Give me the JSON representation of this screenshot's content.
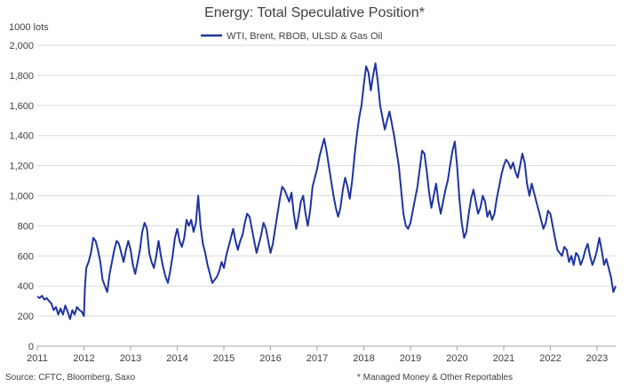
{
  "chart_data": {
    "type": "line",
    "title": "Energy: Total Speculative Position*",
    "ylabel": "1000 lots",
    "ylim": [
      0,
      2000
    ],
    "yticks": [
      0,
      200,
      400,
      600,
      800,
      1000,
      1200,
      1400,
      1600,
      1800,
      2000
    ],
    "ytick_labels": [
      "0",
      "200",
      "400",
      "600",
      "800",
      "1,000",
      "1,200",
      "1,400",
      "1,600",
      "1,800",
      "2,000"
    ],
    "xlim": [
      2011.0,
      2023.4
    ],
    "xticks": [
      "2011",
      "2012",
      "2013",
      "2014",
      "2015",
      "2016",
      "2017",
      "2018",
      "2019",
      "2020",
      "2021",
      "2022",
      "2023"
    ],
    "grid": "horizontal",
    "legend_position": "top-center",
    "source": "Source: CFTC, Bloomberg, Saxo",
    "footnote": "* Managed Money & Other Reportables",
    "series": [
      {
        "name": "WTI, Brent, RBOB, ULSD & Gas Oil",
        "color": "#1f34a0",
        "points": [
          [
            2011.0,
            330
          ],
          [
            2011.05,
            320
          ],
          [
            2011.1,
            335
          ],
          [
            2011.15,
            310
          ],
          [
            2011.2,
            320
          ],
          [
            2011.25,
            300
          ],
          [
            2011.3,
            285
          ],
          [
            2011.35,
            240
          ],
          [
            2011.4,
            260
          ],
          [
            2011.45,
            210
          ],
          [
            2011.5,
            250
          ],
          [
            2011.55,
            210
          ],
          [
            2011.6,
            270
          ],
          [
            2011.65,
            230
          ],
          [
            2011.7,
            180
          ],
          [
            2011.75,
            240
          ],
          [
            2011.8,
            210
          ],
          [
            2011.85,
            260
          ],
          [
            2011.9,
            240
          ],
          [
            2011.95,
            230
          ],
          [
            2012.0,
            200
          ],
          [
            2012.02,
            380
          ],
          [
            2012.05,
            520
          ],
          [
            2012.1,
            560
          ],
          [
            2012.15,
            620
          ],
          [
            2012.2,
            720
          ],
          [
            2012.25,
            700
          ],
          [
            2012.3,
            640
          ],
          [
            2012.35,
            560
          ],
          [
            2012.4,
            440
          ],
          [
            2012.45,
            400
          ],
          [
            2012.5,
            360
          ],
          [
            2012.55,
            480
          ],
          [
            2012.6,
            560
          ],
          [
            2012.65,
            640
          ],
          [
            2012.7,
            700
          ],
          [
            2012.75,
            680
          ],
          [
            2012.8,
            620
          ],
          [
            2012.85,
            560
          ],
          [
            2012.9,
            640
          ],
          [
            2012.95,
            700
          ],
          [
            2013.0,
            640
          ],
          [
            2013.05,
            540
          ],
          [
            2013.1,
            480
          ],
          [
            2013.15,
            560
          ],
          [
            2013.2,
            640
          ],
          [
            2013.25,
            760
          ],
          [
            2013.3,
            820
          ],
          [
            2013.35,
            780
          ],
          [
            2013.4,
            620
          ],
          [
            2013.45,
            560
          ],
          [
            2013.5,
            520
          ],
          [
            2013.55,
            600
          ],
          [
            2013.6,
            700
          ],
          [
            2013.65,
            600
          ],
          [
            2013.7,
            520
          ],
          [
            2013.75,
            460
          ],
          [
            2013.8,
            420
          ],
          [
            2013.85,
            500
          ],
          [
            2013.9,
            600
          ],
          [
            2013.95,
            720
          ],
          [
            2014.0,
            780
          ],
          [
            2014.05,
            700
          ],
          [
            2014.1,
            660
          ],
          [
            2014.15,
            720
          ],
          [
            2014.2,
            840
          ],
          [
            2014.25,
            800
          ],
          [
            2014.3,
            840
          ],
          [
            2014.35,
            760
          ],
          [
            2014.4,
            820
          ],
          [
            2014.45,
            1000
          ],
          [
            2014.5,
            800
          ],
          [
            2014.55,
            680
          ],
          [
            2014.6,
            620
          ],
          [
            2014.65,
            540
          ],
          [
            2014.7,
            480
          ],
          [
            2014.75,
            420
          ],
          [
            2014.8,
            440
          ],
          [
            2014.85,
            460
          ],
          [
            2014.9,
            500
          ],
          [
            2014.95,
            560
          ],
          [
            2015.0,
            520
          ],
          [
            2015.05,
            600
          ],
          [
            2015.1,
            660
          ],
          [
            2015.15,
            720
          ],
          [
            2015.2,
            780
          ],
          [
            2015.25,
            700
          ],
          [
            2015.3,
            640
          ],
          [
            2015.35,
            700
          ],
          [
            2015.4,
            740
          ],
          [
            2015.45,
            820
          ],
          [
            2015.5,
            880
          ],
          [
            2015.55,
            860
          ],
          [
            2015.6,
            780
          ],
          [
            2015.65,
            700
          ],
          [
            2015.7,
            620
          ],
          [
            2015.75,
            680
          ],
          [
            2015.8,
            740
          ],
          [
            2015.85,
            820
          ],
          [
            2015.9,
            780
          ],
          [
            2015.95,
            700
          ],
          [
            2016.0,
            620
          ],
          [
            2016.05,
            680
          ],
          [
            2016.1,
            780
          ],
          [
            2016.15,
            880
          ],
          [
            2016.2,
            980
          ],
          [
            2016.25,
            1060
          ],
          [
            2016.3,
            1040
          ],
          [
            2016.35,
            1000
          ],
          [
            2016.4,
            960
          ],
          [
            2016.45,
            1020
          ],
          [
            2016.5,
            880
          ],
          [
            2016.55,
            780
          ],
          [
            2016.6,
            860
          ],
          [
            2016.65,
            960
          ],
          [
            2016.7,
            1000
          ],
          [
            2016.75,
            880
          ],
          [
            2016.8,
            800
          ],
          [
            2016.85,
            900
          ],
          [
            2016.9,
            1060
          ],
          [
            2016.95,
            1120
          ],
          [
            2017.0,
            1180
          ],
          [
            2017.05,
            1260
          ],
          [
            2017.1,
            1320
          ],
          [
            2017.15,
            1380
          ],
          [
            2017.2,
            1300
          ],
          [
            2017.25,
            1200
          ],
          [
            2017.3,
            1100
          ],
          [
            2017.35,
            1000
          ],
          [
            2017.4,
            920
          ],
          [
            2017.45,
            860
          ],
          [
            2017.5,
            920
          ],
          [
            2017.55,
            1040
          ],
          [
            2017.6,
            1120
          ],
          [
            2017.65,
            1060
          ],
          [
            2017.7,
            980
          ],
          [
            2017.75,
            1100
          ],
          [
            2017.8,
            1260
          ],
          [
            2017.85,
            1400
          ],
          [
            2017.9,
            1520
          ],
          [
            2017.95,
            1600
          ],
          [
            2018.0,
            1740
          ],
          [
            2018.05,
            1860
          ],
          [
            2018.1,
            1820
          ],
          [
            2018.15,
            1700
          ],
          [
            2018.2,
            1800
          ],
          [
            2018.25,
            1880
          ],
          [
            2018.3,
            1760
          ],
          [
            2018.35,
            1600
          ],
          [
            2018.4,
            1520
          ],
          [
            2018.45,
            1440
          ],
          [
            2018.5,
            1500
          ],
          [
            2018.55,
            1560
          ],
          [
            2018.6,
            1480
          ],
          [
            2018.65,
            1400
          ],
          [
            2018.7,
            1300
          ],
          [
            2018.75,
            1200
          ],
          [
            2018.8,
            1040
          ],
          [
            2018.85,
            880
          ],
          [
            2018.9,
            800
          ],
          [
            2018.95,
            780
          ],
          [
            2019.0,
            820
          ],
          [
            2019.05,
            900
          ],
          [
            2019.1,
            980
          ],
          [
            2019.15,
            1060
          ],
          [
            2019.2,
            1180
          ],
          [
            2019.25,
            1300
          ],
          [
            2019.3,
            1280
          ],
          [
            2019.35,
            1160
          ],
          [
            2019.4,
            1020
          ],
          [
            2019.45,
            920
          ],
          [
            2019.5,
            1000
          ],
          [
            2019.55,
            1080
          ],
          [
            2019.6,
            960
          ],
          [
            2019.65,
            880
          ],
          [
            2019.7,
            960
          ],
          [
            2019.75,
            1040
          ],
          [
            2019.8,
            1100
          ],
          [
            2019.85,
            1200
          ],
          [
            2019.9,
            1300
          ],
          [
            2019.95,
            1360
          ],
          [
            2020.0,
            1200
          ],
          [
            2020.05,
            980
          ],
          [
            2020.1,
            820
          ],
          [
            2020.15,
            720
          ],
          [
            2020.2,
            760
          ],
          [
            2020.25,
            880
          ],
          [
            2020.3,
            980
          ],
          [
            2020.35,
            1040
          ],
          [
            2020.4,
            960
          ],
          [
            2020.45,
            880
          ],
          [
            2020.5,
            920
          ],
          [
            2020.55,
            1000
          ],
          [
            2020.6,
            960
          ],
          [
            2020.65,
            860
          ],
          [
            2020.7,
            900
          ],
          [
            2020.75,
            840
          ],
          [
            2020.8,
            880
          ],
          [
            2020.85,
            980
          ],
          [
            2020.9,
            1060
          ],
          [
            2020.95,
            1140
          ],
          [
            2021.0,
            1200
          ],
          [
            2021.05,
            1240
          ],
          [
            2021.1,
            1220
          ],
          [
            2021.15,
            1180
          ],
          [
            2021.2,
            1220
          ],
          [
            2021.25,
            1160
          ],
          [
            2021.3,
            1120
          ],
          [
            2021.35,
            1200
          ],
          [
            2021.4,
            1280
          ],
          [
            2021.45,
            1220
          ],
          [
            2021.5,
            1080
          ],
          [
            2021.55,
            1000
          ],
          [
            2021.6,
            1080
          ],
          [
            2021.65,
            1020
          ],
          [
            2021.7,
            960
          ],
          [
            2021.75,
            900
          ],
          [
            2021.8,
            840
          ],
          [
            2021.85,
            780
          ],
          [
            2021.9,
            820
          ],
          [
            2021.95,
            900
          ],
          [
            2022.0,
            880
          ],
          [
            2022.05,
            800
          ],
          [
            2022.1,
            720
          ],
          [
            2022.15,
            640
          ],
          [
            2022.2,
            620
          ],
          [
            2022.25,
            600
          ],
          [
            2022.3,
            660
          ],
          [
            2022.35,
            640
          ],
          [
            2022.4,
            560
          ],
          [
            2022.45,
            600
          ],
          [
            2022.5,
            540
          ],
          [
            2022.55,
            620
          ],
          [
            2022.6,
            600
          ],
          [
            2022.65,
            540
          ],
          [
            2022.7,
            580
          ],
          [
            2022.75,
            640
          ],
          [
            2022.8,
            680
          ],
          [
            2022.85,
            600
          ],
          [
            2022.9,
            540
          ],
          [
            2022.95,
            580
          ],
          [
            2023.0,
            640
          ],
          [
            2023.05,
            720
          ],
          [
            2023.1,
            640
          ],
          [
            2023.15,
            540
          ],
          [
            2023.2,
            580
          ],
          [
            2023.25,
            520
          ],
          [
            2023.3,
            460
          ],
          [
            2023.35,
            360
          ],
          [
            2023.4,
            400
          ]
        ]
      }
    ]
  }
}
